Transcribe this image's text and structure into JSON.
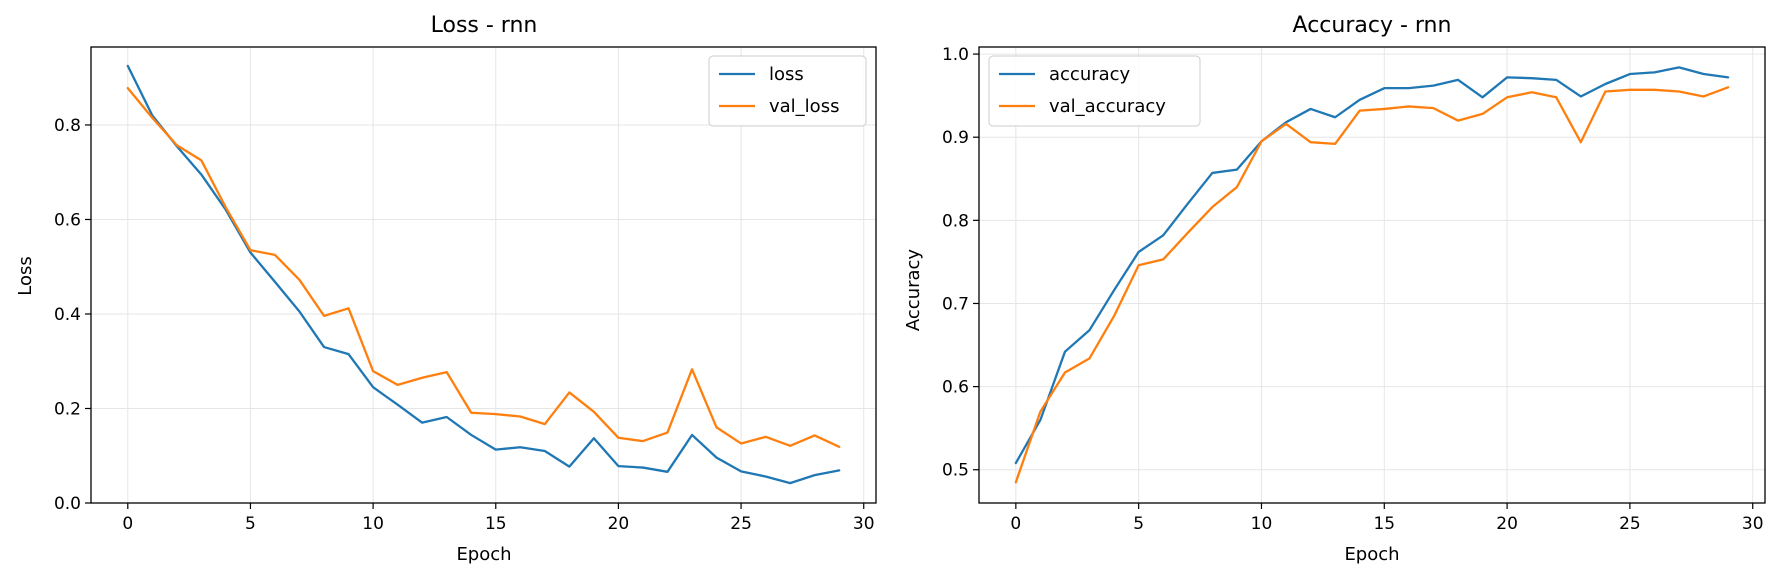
{
  "colors": {
    "series1": "#1f77b4",
    "series2": "#ff7f0e",
    "grid": "#e6e6e6"
  },
  "chart_data": [
    {
      "type": "line",
      "title": "Loss - rnn",
      "xlabel": "Epoch",
      "ylabel": "Loss",
      "xlim": [
        -1.5,
        30.5
      ],
      "ylim": [
        0,
        0.965
      ],
      "xticks": [
        0,
        5,
        10,
        15,
        20,
        25,
        30
      ],
      "yticks": [
        0.0,
        0.2,
        0.4,
        0.6,
        0.8
      ],
      "ytick_labels": [
        "0.0",
        "0.2",
        "0.4",
        "0.6",
        "0.8"
      ],
      "grid": true,
      "legend": "top-right",
      "x": [
        0,
        1,
        2,
        3,
        4,
        5,
        6,
        7,
        8,
        9,
        10,
        11,
        12,
        13,
        14,
        15,
        16,
        17,
        18,
        19,
        20,
        21,
        22,
        23,
        24,
        25,
        26,
        27,
        28,
        29
      ],
      "series": [
        {
          "name": "loss",
          "color": "#1f77b4",
          "values": [
            0.925,
            0.82,
            0.755,
            0.695,
            0.62,
            0.53,
            0.468,
            0.405,
            0.33,
            0.315,
            0.245,
            0.208,
            0.17,
            0.182,
            0.144,
            0.113,
            0.118,
            0.11,
            0.077,
            0.137,
            0.078,
            0.075,
            0.066,
            0.144,
            0.096,
            0.067,
            0.056,
            0.042,
            0.059,
            0.069
          ]
        },
        {
          "name": "val_loss",
          "color": "#ff7f0e",
          "values": [
            0.878,
            0.815,
            0.757,
            0.725,
            0.625,
            0.535,
            0.525,
            0.472,
            0.396,
            0.412,
            0.279,
            0.25,
            0.265,
            0.277,
            0.191,
            0.188,
            0.183,
            0.167,
            0.234,
            0.193,
            0.138,
            0.131,
            0.149,
            0.283,
            0.16,
            0.126,
            0.14,
            0.121,
            0.143,
            0.119
          ]
        }
      ]
    },
    {
      "type": "line",
      "title": "Accuracy - rnn",
      "xlabel": "Epoch",
      "ylabel": "Accuracy",
      "xlim": [
        -1.5,
        30.5
      ],
      "ylim": [
        0.46,
        1.0085
      ],
      "xticks": [
        0,
        5,
        10,
        15,
        20,
        25,
        30
      ],
      "yticks": [
        0.5,
        0.6,
        0.7,
        0.8,
        0.9,
        1.0
      ],
      "ytick_labels": [
        "0.5",
        "0.6",
        "0.7",
        "0.8",
        "0.9",
        "1.0"
      ],
      "grid": true,
      "legend": "top-left",
      "x": [
        0,
        1,
        2,
        3,
        4,
        5,
        6,
        7,
        8,
        9,
        10,
        11,
        12,
        13,
        14,
        15,
        16,
        17,
        18,
        19,
        20,
        21,
        22,
        23,
        24,
        25,
        26,
        27,
        28,
        29
      ],
      "series": [
        {
          "name": "accuracy",
          "color": "#1f77b4",
          "values": [
            0.508,
            0.56,
            0.642,
            0.668,
            0.716,
            0.762,
            0.782,
            0.82,
            0.857,
            0.861,
            0.895,
            0.918,
            0.934,
            0.924,
            0.945,
            0.959,
            0.959,
            0.962,
            0.969,
            0.948,
            0.972,
            0.971,
            0.969,
            0.949,
            0.964,
            0.976,
            0.978,
            0.984,
            0.976,
            0.972
          ]
        },
        {
          "name": "val_accuracy",
          "color": "#ff7f0e",
          "values": [
            0.485,
            0.57,
            0.617,
            0.634,
            0.685,
            0.746,
            0.753,
            0.785,
            0.816,
            0.84,
            0.895,
            0.916,
            0.894,
            0.892,
            0.932,
            0.934,
            0.937,
            0.935,
            0.92,
            0.928,
            0.948,
            0.954,
            0.948,
            0.894,
            0.955,
            0.957,
            0.957,
            0.955,
            0.949,
            0.96
          ]
        }
      ]
    }
  ]
}
